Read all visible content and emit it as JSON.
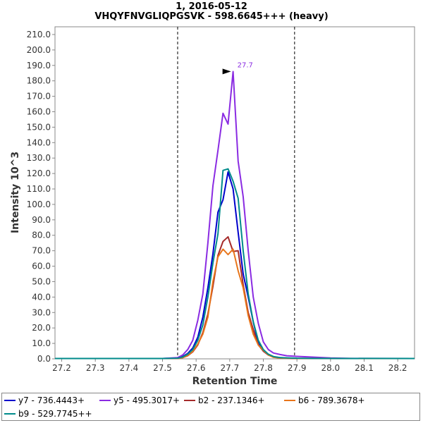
{
  "chart_data": {
    "type": "line",
    "title": "1, 2016-05-12",
    "subtitle": "VHQYFNVGLIQPGSVK - 598.6645+++ (heavy)",
    "xlabel": "Retention Time",
    "ylabel": "Intensity 10^3",
    "xlim": [
      27.18,
      28.25
    ],
    "ylim": [
      0,
      215
    ],
    "x_ticks": [
      "27.2",
      "27.3",
      "27.4",
      "27.5",
      "27.6",
      "27.7",
      "27.8",
      "27.9",
      "28.0",
      "28.1",
      "28.2"
    ],
    "y_ticks": [
      "0.0",
      "10.0",
      "20.0",
      "30.0",
      "40.0",
      "50.0",
      "60.0",
      "70.0",
      "80.0",
      "90.0",
      "100.0",
      "110.0",
      "120.0",
      "130.0",
      "140.0",
      "150.0",
      "160.0",
      "170.0",
      "180.0",
      "190.0",
      "200.0",
      "210.0"
    ],
    "vlines": [
      27.545,
      27.893
    ],
    "peak_annotation": {
      "x": 27.71,
      "y": 186.5,
      "label": "27.7",
      "color": "#8a2be2"
    },
    "series": [
      {
        "name": "y7 - 736.4443+",
        "color": "#0000cc",
        "points": [
          [
            27.18,
            0.2
          ],
          [
            27.5,
            0.2
          ],
          [
            27.545,
            0.4
          ],
          [
            27.56,
            1.5
          ],
          [
            27.575,
            3.5
          ],
          [
            27.59,
            7.0
          ],
          [
            27.605,
            14.0
          ],
          [
            27.62,
            27.0
          ],
          [
            27.635,
            46.0
          ],
          [
            27.65,
            68.0
          ],
          [
            27.665,
            95.0
          ],
          [
            27.68,
            103.0
          ],
          [
            27.695,
            121.0
          ],
          [
            27.71,
            110.0
          ],
          [
            27.725,
            82.0
          ],
          [
            27.74,
            55.0
          ],
          [
            27.755,
            40.0
          ],
          [
            27.77,
            24.0
          ],
          [
            27.785,
            10.0
          ],
          [
            27.8,
            5.0
          ],
          [
            27.815,
            2.5
          ],
          [
            27.83,
            1.2
          ],
          [
            27.85,
            0.8
          ],
          [
            27.87,
            0.5
          ],
          [
            27.9,
            0.3
          ],
          [
            28.25,
            0.2
          ]
        ]
      },
      {
        "name": "y5 - 495.3017+",
        "color": "#8a2be2",
        "points": [
          [
            27.18,
            0.2
          ],
          [
            27.5,
            0.2
          ],
          [
            27.545,
            0.8
          ],
          [
            27.56,
            2.5
          ],
          [
            27.575,
            6.0
          ],
          [
            27.59,
            12.0
          ],
          [
            27.605,
            25.0
          ],
          [
            27.62,
            42.0
          ],
          [
            27.635,
            75.0
          ],
          [
            27.65,
            112.0
          ],
          [
            27.665,
            135.0
          ],
          [
            27.68,
            159.0
          ],
          [
            27.695,
            152.0
          ],
          [
            27.71,
            186.0
          ],
          [
            27.725,
            128.0
          ],
          [
            27.74,
            105.0
          ],
          [
            27.755,
            70.0
          ],
          [
            27.77,
            40.0
          ],
          [
            27.785,
            23.0
          ],
          [
            27.8,
            11.0
          ],
          [
            27.815,
            6.0
          ],
          [
            27.83,
            3.8
          ],
          [
            27.85,
            2.8
          ],
          [
            27.87,
            2.0
          ],
          [
            27.9,
            1.6
          ],
          [
            27.94,
            1.2
          ],
          [
            28.0,
            0.6
          ],
          [
            28.06,
            0.3
          ],
          [
            28.25,
            0.2
          ]
        ]
      },
      {
        "name": "b2 - 237.1346+",
        "color": "#a52a2a",
        "points": [
          [
            27.18,
            0.2
          ],
          [
            27.5,
            0.2
          ],
          [
            27.545,
            0.3
          ],
          [
            27.56,
            0.8
          ],
          [
            27.575,
            2.0
          ],
          [
            27.59,
            4.5
          ],
          [
            27.605,
            9.0
          ],
          [
            27.62,
            17.0
          ],
          [
            27.635,
            29.0
          ],
          [
            27.65,
            47.0
          ],
          [
            27.665,
            67.0
          ],
          [
            27.68,
            76.0
          ],
          [
            27.695,
            79.0
          ],
          [
            27.71,
            69.5
          ],
          [
            27.725,
            70.0
          ],
          [
            27.74,
            48.0
          ],
          [
            27.755,
            30.0
          ],
          [
            27.77,
            19.0
          ],
          [
            27.785,
            9.0
          ],
          [
            27.8,
            5.0
          ],
          [
            27.815,
            2.5
          ],
          [
            27.83,
            1.2
          ],
          [
            27.85,
            0.6
          ],
          [
            27.9,
            0.3
          ],
          [
            28.25,
            0.2
          ]
        ]
      },
      {
        "name": "b6 - 789.3678+",
        "color": "#e8751a",
        "points": [
          [
            27.18,
            0.2
          ],
          [
            27.5,
            0.2
          ],
          [
            27.545,
            0.3
          ],
          [
            27.56,
            0.8
          ],
          [
            27.575,
            2.2
          ],
          [
            27.59,
            4.8
          ],
          [
            27.605,
            9.5
          ],
          [
            27.62,
            16.0
          ],
          [
            27.635,
            27.0
          ],
          [
            27.65,
            50.0
          ],
          [
            27.665,
            66.0
          ],
          [
            27.68,
            71.0
          ],
          [
            27.695,
            67.5
          ],
          [
            27.71,
            71.0
          ],
          [
            27.725,
            57.0
          ],
          [
            27.74,
            46.0
          ],
          [
            27.755,
            28.0
          ],
          [
            27.77,
            16.0
          ],
          [
            27.785,
            9.0
          ],
          [
            27.8,
            5.5
          ],
          [
            27.815,
            2.5
          ],
          [
            27.83,
            1.0
          ],
          [
            27.85,
            0.5
          ],
          [
            27.9,
            0.3
          ],
          [
            28.25,
            0.2
          ]
        ]
      },
      {
        "name": "b9 - 529.7745++",
        "color": "#008b8b",
        "points": [
          [
            27.18,
            0.2
          ],
          [
            27.5,
            0.2
          ],
          [
            27.545,
            0.4
          ],
          [
            27.56,
            1.2
          ],
          [
            27.575,
            3.0
          ],
          [
            27.59,
            6.0
          ],
          [
            27.605,
            12.0
          ],
          [
            27.62,
            22.0
          ],
          [
            27.635,
            40.0
          ],
          [
            27.65,
            62.0
          ],
          [
            27.665,
            81.0
          ],
          [
            27.68,
            122.0
          ],
          [
            27.695,
            123.0
          ],
          [
            27.71,
            115.0
          ],
          [
            27.725,
            104.0
          ],
          [
            27.74,
            70.0
          ],
          [
            27.755,
            42.0
          ],
          [
            27.77,
            24.0
          ],
          [
            27.785,
            12.0
          ],
          [
            27.8,
            6.0
          ],
          [
            27.815,
            3.0
          ],
          [
            27.83,
            1.5
          ],
          [
            27.85,
            0.8
          ],
          [
            27.9,
            0.4
          ],
          [
            27.95,
            0.3
          ],
          [
            28.25,
            0.2
          ]
        ]
      }
    ]
  }
}
